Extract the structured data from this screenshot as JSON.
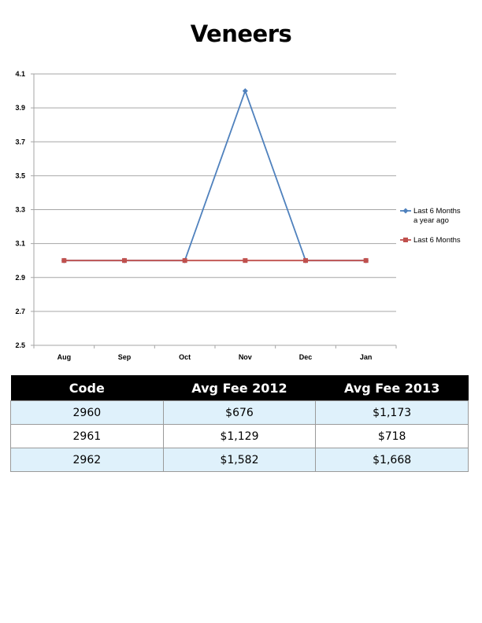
{
  "title": "Veneers",
  "chart_data": {
    "type": "line",
    "categories": [
      "Aug",
      "Sep",
      "Oct",
      "Nov",
      "Dec",
      "Jan"
    ],
    "series": [
      {
        "name": "Last 6 Months a year ago",
        "values": [
          3,
          3,
          3,
          4,
          3,
          3
        ],
        "color": "#4f81bd",
        "marker": "diamond"
      },
      {
        "name": "Last 6 Months",
        "values": [
          3,
          3,
          3,
          3,
          3,
          3
        ],
        "color": "#c0504d",
        "marker": "square"
      }
    ],
    "ylim": [
      2.5,
      4.1
    ],
    "yticks": [
      "4.1",
      "3.9",
      "3.7",
      "3.5",
      "3.3",
      "3.1",
      "2.9",
      "2.7",
      "2.5"
    ],
    "grid": true,
    "legend_position": "right"
  },
  "table": {
    "headers": [
      "Code",
      "Avg Fee 2012",
      "Avg Fee 2013"
    ],
    "rows": [
      [
        "2960",
        "$676",
        "$1,173"
      ],
      [
        "2961",
        "$1,129",
        "$718"
      ],
      [
        "2962",
        "$1,582",
        "$1,668"
      ]
    ]
  }
}
